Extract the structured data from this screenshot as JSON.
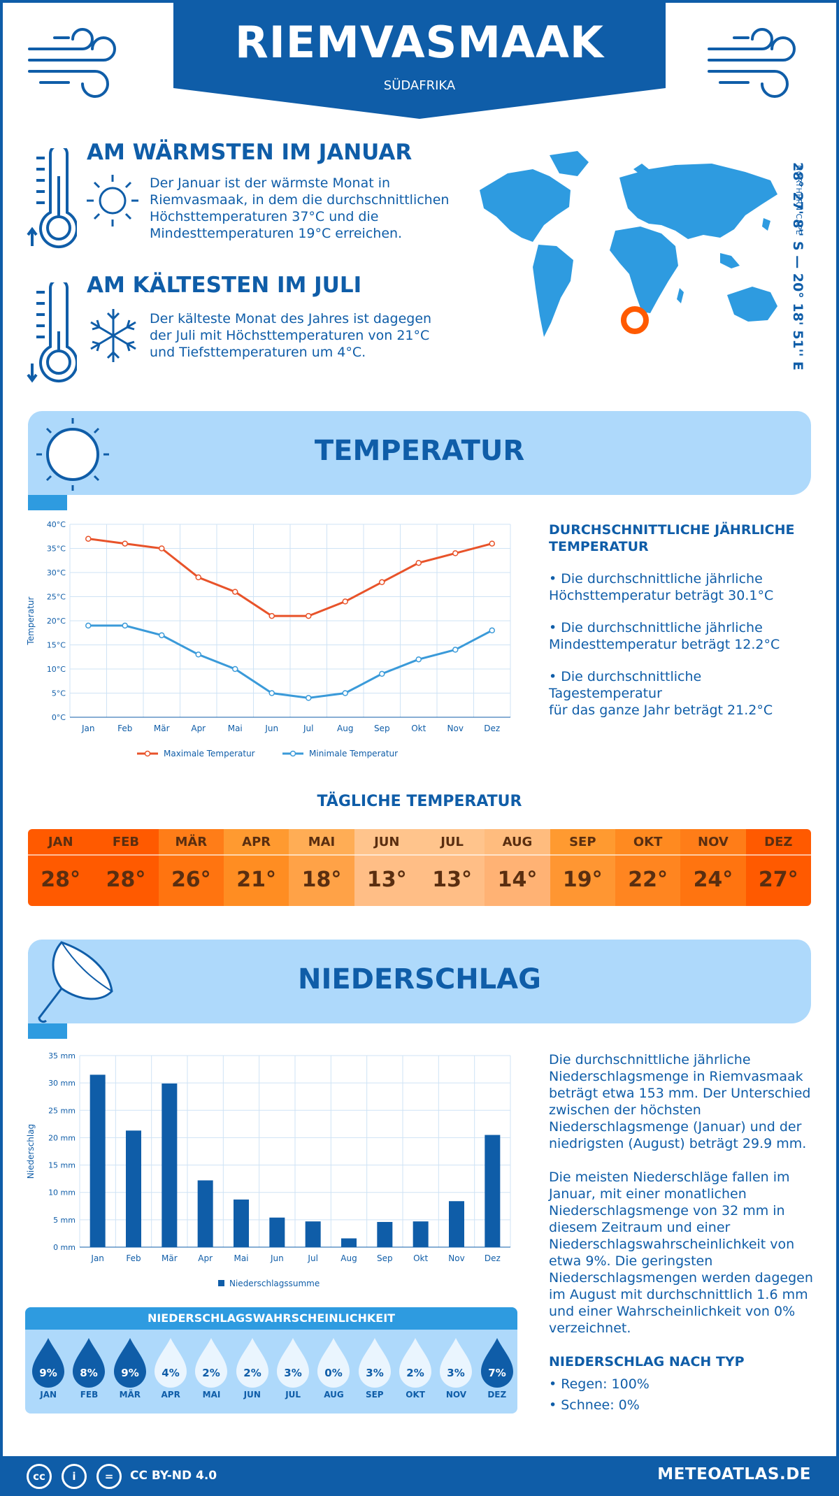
{
  "header": {
    "title": "RIEMVASMAAK",
    "country": "SÜDAFRIKA"
  },
  "coords": {
    "main": "28° 27' 8'' S — 20° 18' 51'' E",
    "region": "NORTHERN CAPE"
  },
  "warmest": {
    "title": "AM WÄRMSTEN IM JANUAR",
    "lines": [
      "Der Januar ist der wärmste Monat in",
      "Riemvasmaak, in dem die durchschnittlichen",
      "Höchsttemperaturen 37°C und die",
      "Mindesttemperaturen 19°C erreichen."
    ]
  },
  "coldest": {
    "title": "AM KÄLTESTEN IM JULI",
    "lines": [
      "Der kälteste Monat des Jahres ist dagegen",
      "der Juli mit Höchsttemperaturen von 21°C",
      "und Tiefsttemperaturen um 4°C."
    ]
  },
  "temperature_section": {
    "title": "TEMPERATUR",
    "stats_title_lines": [
      "DURCHSCHNITTLICHE JÄHRLICHE",
      "TEMPERATUR"
    ],
    "bullets": [
      [
        "• Die durchschnittliche jährliche",
        "Höchsttemperatur beträgt 30.1°C"
      ],
      [
        "• Die durchschnittliche jährliche",
        "Mindesttemperatur beträgt 12.2°C"
      ],
      [
        "• Die durchschnittliche Tagestemperatur",
        "für das ganze Jahr beträgt 21.2°C"
      ]
    ]
  },
  "daily": {
    "title": "TÄGLICHE TEMPERATUR",
    "months": [
      "JAN",
      "FEB",
      "MÄR",
      "APR",
      "MAI",
      "JUN",
      "JUL",
      "AUG",
      "SEP",
      "OKT",
      "NOV",
      "DEZ"
    ],
    "values": [
      "28°",
      "28°",
      "26°",
      "21°",
      "18°",
      "13°",
      "13°",
      "14°",
      "19°",
      "22°",
      "24°",
      "27°"
    ],
    "header_colors": [
      "#ff5a00",
      "#ff5a00",
      "#ff7d18",
      "#ff9a30",
      "#ffad55",
      "#ffc48c",
      "#ffc48c",
      "#ffbc7e",
      "#ff9a30",
      "#ff8a20",
      "#ff7d18",
      "#ff5a00"
    ],
    "value_colors": [
      "#ff5a00",
      "#ff5a00",
      "#ff7410",
      "#ff8d22",
      "#ffa247",
      "#ffbe86",
      "#ffbe86",
      "#ffb274",
      "#ff9632",
      "#ff8520",
      "#ff7410",
      "#ff5a00"
    ]
  },
  "precip_section": {
    "title": "NIEDERSCHLAG",
    "paragraph1": [
      "Die durchschnittliche jährliche",
      "Niederschlagsmenge in Riemvasmaak",
      "beträgt etwa 153 mm. Der Unterschied",
      "zwischen der höchsten",
      "Niederschlagsmenge (Januar) und der",
      "niedrigsten (August) beträgt 29.9 mm."
    ],
    "paragraph2": [
      "Die meisten Niederschläge fallen im",
      "Januar, mit einer monatlichen",
      "Niederschlagsmenge von 32 mm in",
      "diesem Zeitraum und einer",
      "Niederschlagswahrscheinlichkeit von",
      "etwa 9%. Die geringsten",
      "Niederschlagsmengen werden dagegen",
      "im August mit durchschnittlich 1.6 mm",
      "und einer Wahrscheinlichkeit von 0%",
      "verzeichnet."
    ],
    "type_title": "NIEDERSCHLAG NACH TYP",
    "types": [
      "• Regen: 100%",
      "• Schnee: 0%"
    ]
  },
  "probability": {
    "title": "NIEDERSCHLAGSWAHRSCHEINLICHKEIT",
    "months": [
      "JAN",
      "FEB",
      "MÄR",
      "APR",
      "MAI",
      "JUN",
      "JUL",
      "AUG",
      "SEP",
      "OKT",
      "NOV",
      "DEZ"
    ],
    "values": [
      "9%",
      "8%",
      "9%",
      "4%",
      "2%",
      "2%",
      "3%",
      "0%",
      "3%",
      "2%",
      "3%",
      "7%"
    ],
    "numeric": [
      9,
      8,
      9,
      4,
      2,
      2,
      3,
      0,
      3,
      2,
      3,
      7
    ]
  },
  "footer": {
    "license": "CC BY-ND 4.0",
    "site": "METEOATLAS.DE"
  },
  "chart_data": [
    {
      "type": "line",
      "x": [
        "Jan",
        "Feb",
        "Mär",
        "Apr",
        "Mai",
        "Jun",
        "Jul",
        "Aug",
        "Sep",
        "Okt",
        "Nov",
        "Dez"
      ],
      "series": [
        {
          "name": "Maximale Temperatur",
          "color": "#e8532a",
          "values": [
            37,
            36,
            35,
            29,
            26,
            21,
            21,
            24,
            28,
            32,
            34,
            36
          ]
        },
        {
          "name": "Minimale Temperatur",
          "color": "#3a9ad9",
          "values": [
            19,
            19,
            17,
            13,
            10,
            5,
            4,
            5,
            9,
            12,
            14,
            18
          ]
        }
      ],
      "ylabel": "Temperatur",
      "ylim": [
        0,
        40
      ],
      "yticks": [
        "0°C",
        "5°C",
        "10°C",
        "15°C",
        "20°C",
        "25°C",
        "30°C",
        "35°C",
        "40°C"
      ],
      "grid": true,
      "legend": "bottom"
    },
    {
      "type": "bar",
      "categories": [
        "Jan",
        "Feb",
        "Mär",
        "Apr",
        "Mai",
        "Jun",
        "Jul",
        "Aug",
        "Sep",
        "Okt",
        "Nov",
        "Dez"
      ],
      "series": [
        {
          "name": "Niederschlagssumme",
          "color": "#0f5da8",
          "values": [
            31.5,
            21.3,
            29.9,
            12.2,
            8.7,
            5.4,
            4.7,
            1.6,
            4.6,
            4.7,
            8.4,
            20.5
          ]
        }
      ],
      "ylabel": "Niederschlag",
      "ylim": [
        0,
        35
      ],
      "yticks": [
        "0 mm",
        "5 mm",
        "10 mm",
        "15 mm",
        "20 mm",
        "25 mm",
        "30 mm",
        "35 mm"
      ],
      "grid": true,
      "legend": "bottom"
    }
  ]
}
